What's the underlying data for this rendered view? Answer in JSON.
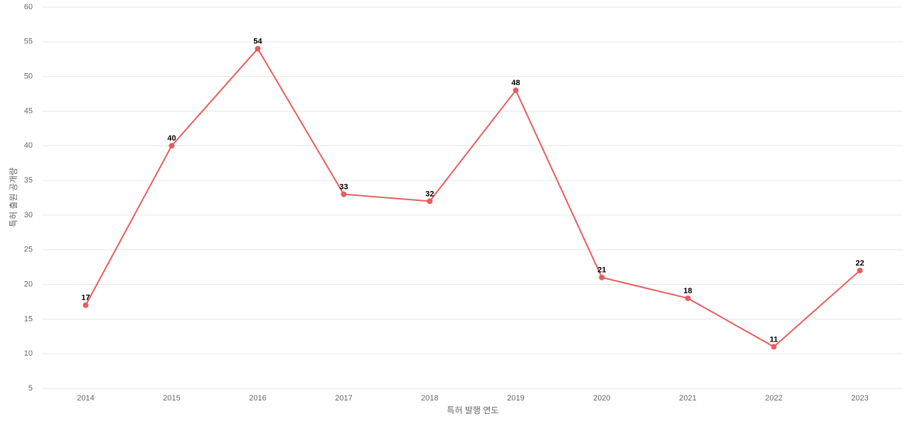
{
  "chart_data": {
    "type": "line",
    "x_label": "특허 발행 연도",
    "y_label": "특허 출원 공개량",
    "categories": [
      "2014",
      "2015",
      "2016",
      "2017",
      "2018",
      "2019",
      "2020",
      "2021",
      "2022",
      "2023"
    ],
    "values": [
      17,
      40,
      54,
      33,
      32,
      48,
      21,
      18,
      11,
      22
    ],
    "color": "#e85d5d",
    "ylim": [
      5,
      60
    ],
    "yticks": [
      5,
      10,
      15,
      20,
      25,
      30,
      35,
      40,
      45,
      50,
      55,
      60
    ],
    "grid": true
  }
}
